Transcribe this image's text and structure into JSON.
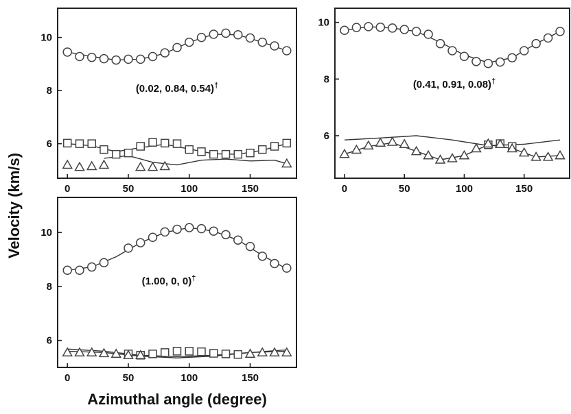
{
  "chart_data": {
    "type": "scatter",
    "xlabel": "Azimuthal angle (degree)",
    "ylabel": "Velocity (km/s)",
    "panels": [
      {
        "annotation": "(0.02, 0.84, 0.54)",
        "annotation_mark": "†",
        "xlim": [
          -8,
          188
        ],
        "ylim": [
          4.7,
          11.1
        ],
        "xticks": [
          0,
          50,
          100,
          150
        ],
        "yticks": [
          6,
          8,
          10
        ],
        "series": [
          {
            "marker": "circle",
            "x": [
              0,
              10,
              20,
              30,
              40,
              50,
              60,
              70,
              80,
              90,
              100,
              110,
              120,
              130,
              140,
              150,
              160,
              170,
              180
            ],
            "y": [
              9.45,
              9.28,
              9.25,
              9.2,
              9.15,
              9.18,
              9.18,
              9.28,
              9.42,
              9.62,
              9.82,
              10.0,
              10.12,
              10.16,
              10.1,
              9.98,
              9.82,
              9.68,
              9.5
            ]
          },
          {
            "marker": "square",
            "x": [
              0,
              10,
              20,
              30,
              40,
              50,
              60,
              70,
              80,
              90,
              100,
              110,
              120,
              130,
              140,
              150,
              160,
              170,
              180
            ],
            "y": [
              6.02,
              6.0,
              6.0,
              5.78,
              5.6,
              5.65,
              5.9,
              6.05,
              6.02,
              6.0,
              5.78,
              5.7,
              5.6,
              5.6,
              5.6,
              5.65,
              5.78,
              5.9,
              6.02
            ]
          },
          {
            "marker": "triangle",
            "x": [
              0,
              10,
              20,
              30,
              60,
              70,
              80,
              180
            ],
            "y": [
              5.2,
              5.12,
              5.15,
              5.2,
              5.12,
              5.12,
              5.15,
              5.25
            ]
          }
        ],
        "fits": [
          {
            "x": [
              0,
              20,
              40,
              60,
              80,
              100,
              120,
              140,
              160,
              180
            ],
            "y": [
              9.45,
              9.28,
              9.15,
              9.18,
              9.4,
              9.82,
              10.12,
              10.1,
              9.82,
              9.5
            ]
          },
          {
            "x": [
              0,
              20,
              40,
              60,
              80,
              100,
              120,
              140,
              160,
              180
            ],
            "y": [
              6.0,
              5.92,
              5.7,
              5.85,
              5.98,
              5.8,
              5.62,
              5.6,
              5.75,
              6.0
            ]
          },
          {
            "x": [
              30,
              50,
              70,
              90,
              110,
              130,
              150,
              170,
              180
            ],
            "y": [
              5.45,
              5.55,
              5.3,
              5.2,
              5.38,
              5.42,
              5.35,
              5.38,
              5.25
            ]
          }
        ]
      },
      {
        "annotation": "(0.41, 0.91, 0.08)",
        "annotation_mark": "†",
        "xlim": [
          -8,
          188
        ],
        "ylim": [
          4.5,
          10.5
        ],
        "xticks": [
          0,
          50,
          100,
          150
        ],
        "yticks": [
          6,
          8,
          10
        ],
        "series": [
          {
            "marker": "circle",
            "x": [
              0,
              10,
              20,
              30,
              40,
              50,
              60,
              70,
              80,
              90,
              100,
              110,
              120,
              130,
              140,
              150,
              160,
              170,
              180
            ],
            "y": [
              9.72,
              9.82,
              9.85,
              9.83,
              9.8,
              9.75,
              9.68,
              9.58,
              9.25,
              9.0,
              8.8,
              8.62,
              8.55,
              8.6,
              8.75,
              9.0,
              9.25,
              9.45,
              9.68
            ]
          },
          {
            "marker": "square",
            "x": [
              120,
              130,
              140
            ],
            "y": [
              5.68,
              5.72,
              5.62
            ]
          },
          {
            "marker": "triangle",
            "x": [
              0,
              10,
              20,
              30,
              40,
              50,
              60,
              70,
              80,
              90,
              100,
              110,
              120,
              130,
              140,
              150,
              160,
              170,
              180
            ],
            "y": [
              5.35,
              5.5,
              5.65,
              5.75,
              5.78,
              5.7,
              5.45,
              5.3,
              5.15,
              5.2,
              5.3,
              5.55,
              5.72,
              5.7,
              5.55,
              5.4,
              5.25,
              5.25,
              5.3
            ]
          }
        ],
        "fits": [
          {
            "x": [
              0,
              20,
              40,
              60,
              80,
              100,
              120,
              140,
              160,
              180
            ],
            "y": [
              9.72,
              9.85,
              9.8,
              9.68,
              9.3,
              8.85,
              8.58,
              8.75,
              9.25,
              9.68
            ]
          },
          {
            "x": [
              0,
              30,
              60,
              90,
              120,
              150,
              180
            ],
            "y": [
              5.85,
              5.92,
              6.0,
              5.85,
              5.65,
              5.7,
              5.85
            ]
          },
          {
            "x": [
              0,
              20,
              40,
              60,
              80,
              100,
              120,
              140,
              160,
              180
            ],
            "y": [
              5.35,
              5.62,
              5.75,
              5.45,
              5.15,
              5.3,
              5.68,
              5.55,
              5.25,
              5.3
            ]
          }
        ]
      },
      {
        "annotation": "(1.00, 0, 0)",
        "annotation_mark": "†",
        "xlim": [
          -8,
          188
        ],
        "ylim": [
          5.0,
          11.3
        ],
        "xticks": [
          0,
          50,
          100,
          150
        ],
        "yticks": [
          6,
          8,
          10
        ],
        "series": [
          {
            "marker": "circle",
            "x": [
              0,
              10,
              20,
              30,
              50,
              60,
              70,
              80,
              90,
              100,
              110,
              120,
              130,
              140,
              150,
              160,
              170,
              180
            ],
            "y": [
              8.6,
              8.6,
              8.72,
              8.88,
              9.42,
              9.62,
              9.82,
              10.02,
              10.12,
              10.18,
              10.14,
              10.05,
              9.92,
              9.72,
              9.48,
              9.12,
              8.85,
              8.68
            ]
          },
          {
            "marker": "square",
            "x": [
              50,
              60,
              70,
              80,
              90,
              100,
              110,
              120,
              130,
              140
            ],
            "y": [
              5.5,
              5.45,
              5.5,
              5.55,
              5.6,
              5.6,
              5.58,
              5.52,
              5.5,
              5.48
            ]
          },
          {
            "marker": "triangle",
            "x": [
              0,
              10,
              20,
              30,
              40,
              50,
              60,
              150,
              160,
              170,
              180
            ],
            "y": [
              5.55,
              5.55,
              5.55,
              5.52,
              5.5,
              5.45,
              5.45,
              5.5,
              5.55,
              5.55,
              5.55
            ]
          }
        ],
        "fits": [
          {
            "x": [
              0,
              20,
              40,
              60,
              80,
              100,
              120,
              140,
              160,
              180
            ],
            "y": [
              8.6,
              8.72,
              9.1,
              9.62,
              10.0,
              10.18,
              10.05,
              9.72,
              9.15,
              8.65
            ]
          },
          {
            "x": [
              0,
              30,
              60,
              90,
              120,
              150,
              180
            ],
            "y": [
              5.68,
              5.6,
              5.45,
              5.4,
              5.45,
              5.55,
              5.65
            ]
          },
          {
            "x": [
              0,
              30,
              60,
              90,
              120,
              150,
              180
            ],
            "y": [
              5.6,
              5.55,
              5.42,
              5.35,
              5.42,
              5.55,
              5.6
            ]
          }
        ]
      }
    ]
  }
}
